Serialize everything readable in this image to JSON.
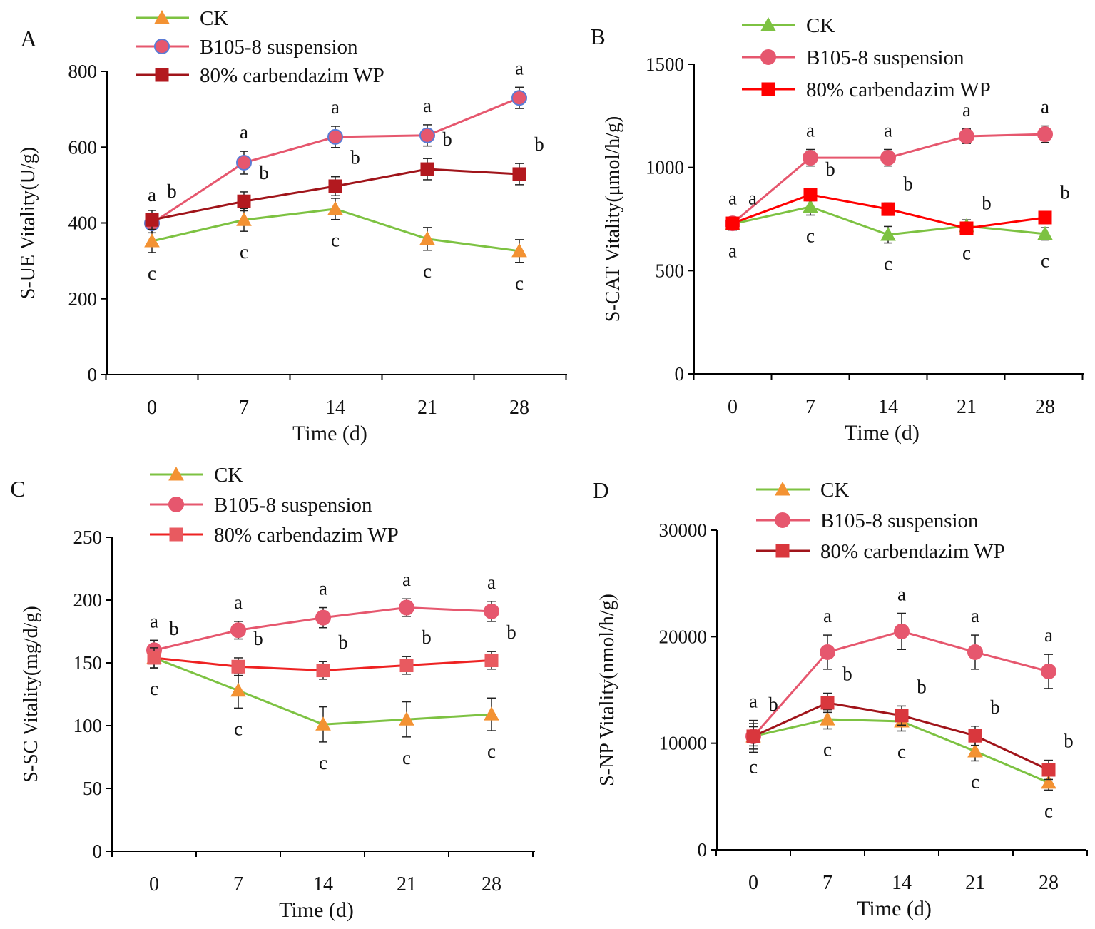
{
  "chart_data": [
    {
      "type": "line",
      "panel_label": "A",
      "xlabel": "Time (d)",
      "ylabel": "S-UE Vitality(U/g)",
      "categories": [
        "0",
        "7",
        "14",
        "21",
        "28"
      ],
      "ylim": [
        0,
        800
      ],
      "yticks": [
        0,
        200,
        400,
        600,
        800
      ],
      "grid": false,
      "legend": "top",
      "series": [
        {
          "name": "CK",
          "marker": "triangle",
          "line_color": "#7dc242",
          "marker_color": "#f39233",
          "marker_edge": "#f39233",
          "values": [
            352,
            408,
            437,
            358,
            326
          ],
          "errors": [
            30,
            30,
            28,
            30,
            30
          ],
          "letters": [
            "c",
            "c",
            "c",
            "c",
            "c"
          ]
        },
        {
          "name": "B105-8 suspension",
          "marker": "circle",
          "line_color": "#e6576e",
          "marker_color": "#e6576e",
          "marker_edge": "#5b7bd5",
          "values": [
            399,
            559,
            627,
            631,
            730
          ],
          "errors": [
            25,
            30,
            28,
            28,
            28
          ],
          "letters": [
            "a",
            "a",
            "a",
            "a",
            "a"
          ]
        },
        {
          "name": "80% carbendazim WP",
          "marker": "square",
          "line_color": "#a0141a",
          "marker_color": "#b3191f",
          "marker_edge": "#b3191f",
          "values": [
            408,
            457,
            497,
            542,
            529
          ],
          "errors": [
            25,
            25,
            25,
            28,
            28
          ],
          "letters": [
            "b",
            "b",
            "b",
            "b",
            "b"
          ]
        }
      ]
    },
    {
      "type": "line",
      "panel_label": "B",
      "xlabel": "Time (d)",
      "ylabel": "S-CAT Vitality(μmol/h/g)",
      "categories": [
        "0",
        "7",
        "14",
        "21",
        "28"
      ],
      "ylim": [
        0,
        1500
      ],
      "yticks": [
        0,
        500,
        1000,
        1500
      ],
      "grid": false,
      "legend": "top",
      "series": [
        {
          "name": "CK",
          "marker": "triangle",
          "line_color": "#7dc242",
          "marker_color": "#7dc242",
          "marker_edge": "#7dc242",
          "values": [
            726,
            809,
            674,
            716,
            678
          ],
          "errors": [
            30,
            40,
            40,
            30,
            30
          ],
          "letters": [
            "a",
            "c",
            "c",
            "c",
            "c"
          ]
        },
        {
          "name": "B105-8 suspension",
          "marker": "circle",
          "line_color": "#e6576e",
          "marker_color": "#e6576e",
          "marker_edge": "#e6576e",
          "values": [
            729,
            1047,
            1047,
            1151,
            1161
          ],
          "errors": [
            30,
            40,
            40,
            35,
            40
          ],
          "letters": [
            "a",
            "a",
            "a",
            "a",
            "a"
          ]
        },
        {
          "name": "80% carbendazim WP",
          "marker": "square",
          "line_color": "#ff0000",
          "marker_color": "#ff0000",
          "marker_edge": "#ff0000",
          "values": [
            729,
            868,
            798,
            705,
            757
          ],
          "errors": [
            30,
            30,
            30,
            30,
            30
          ],
          "letters": [
            "a",
            "b",
            "b",
            "b",
            "b"
          ]
        }
      ]
    },
    {
      "type": "line",
      "panel_label": "C",
      "xlabel": "Time (d)",
      "ylabel": "S-SC Vitality(mg/d/g)",
      "categories": [
        "0",
        "7",
        "14",
        "21",
        "28"
      ],
      "ylim": [
        0,
        250
      ],
      "yticks": [
        0,
        50,
        100,
        150,
        200,
        250
      ],
      "grid": false,
      "legend": "top",
      "series": [
        {
          "name": "CK",
          "marker": "triangle",
          "line_color": "#7dc242",
          "marker_color": "#f39233",
          "marker_edge": "#f39233",
          "values": [
            154,
            128,
            101,
            105,
            109
          ],
          "errors": [
            8,
            14,
            14,
            14,
            13
          ],
          "letters": [
            "c",
            "c",
            "c",
            "c",
            "c"
          ]
        },
        {
          "name": "B105-8 suspension",
          "marker": "circle",
          "line_color": "#e6576e",
          "marker_color": "#e6576e",
          "marker_edge": "#e6576e",
          "values": [
            160,
            176,
            186,
            194,
            191
          ],
          "errors": [
            8,
            7,
            8,
            7,
            8
          ],
          "letters": [
            "a",
            "a",
            "a",
            "a",
            "a"
          ]
        },
        {
          "name": "80% carbendazim WP",
          "marker": "square",
          "line_color": "#ee2222",
          "marker_color": "#e85a60",
          "marker_edge": "#e85a60",
          "values": [
            154,
            147,
            144,
            148,
            152
          ],
          "errors": [
            8,
            7,
            7,
            7,
            7
          ],
          "letters": [
            "b",
            "b",
            "b",
            "b",
            "b"
          ]
        }
      ]
    },
    {
      "type": "line",
      "panel_label": "D",
      "xlabel": "Time (d)",
      "ylabel": "S-NP Vitality(nmol/h/g)",
      "categories": [
        "0",
        "7",
        "14",
        "21",
        "28"
      ],
      "ylim": [
        0,
        30000
      ],
      "yticks": [
        0,
        10000,
        20000,
        30000
      ],
      "grid": false,
      "legend": "top",
      "series": [
        {
          "name": "CK",
          "marker": "triangle",
          "line_color": "#7dc242",
          "marker_color": "#f39233",
          "marker_edge": "#f39233",
          "values": [
            10650,
            12250,
            12050,
            9240,
            6300
          ],
          "errors": [
            900,
            900,
            900,
            900,
            700
          ],
          "letters": [
            "c",
            "c",
            "c",
            "c",
            "c"
          ]
        },
        {
          "name": "B105-8 suspension",
          "marker": "circle",
          "line_color": "#e6576e",
          "marker_color": "#e6576e",
          "marker_edge": "#e6576e",
          "values": [
            10650,
            18550,
            20500,
            18550,
            16740
          ],
          "errors": [
            1500,
            1600,
            1700,
            1600,
            1600
          ],
          "letters": [
            "a",
            "a",
            "a",
            "a",
            "a"
          ]
        },
        {
          "name": "80% carbendazim WP",
          "marker": "square",
          "line_color": "#a0141a",
          "marker_color": "#d9373d",
          "marker_edge": "#d9373d",
          "values": [
            10650,
            13800,
            12600,
            10700,
            7500
          ],
          "errors": [
            1200,
            900,
            900,
            900,
            900
          ],
          "letters": [
            "b",
            "b",
            "b",
            "b",
            "b"
          ]
        }
      ]
    }
  ]
}
